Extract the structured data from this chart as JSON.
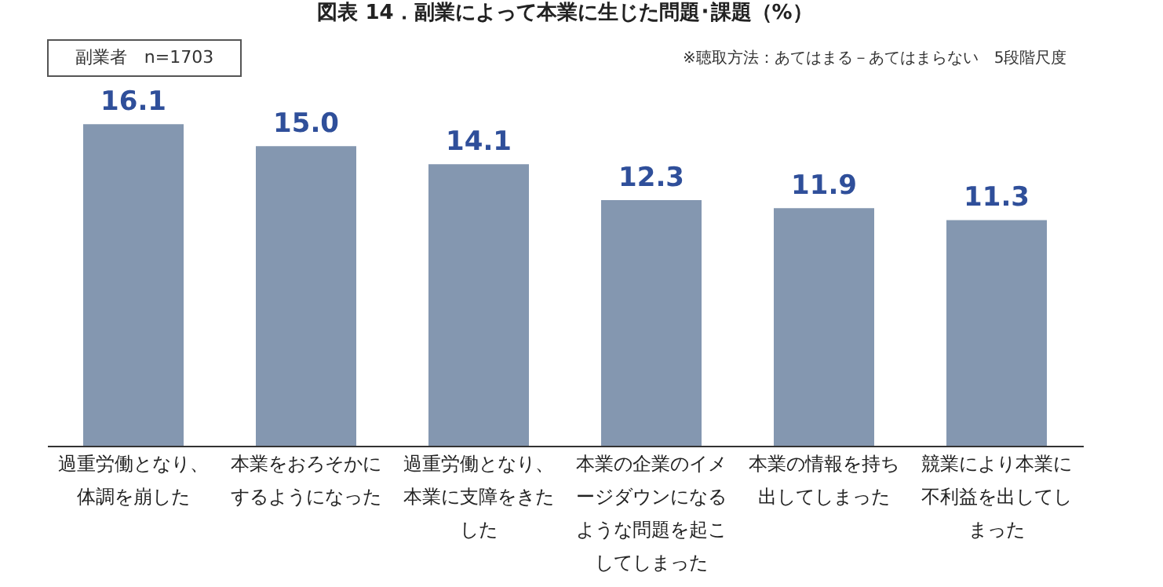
{
  "chart_data": {
    "type": "bar",
    "title": "図表 14．副業によって本業に生じた問題･課題（%）",
    "categories": [
      "過重労働となり、体調を崩した",
      "本業をおろそかにするようになった",
      "過重労働となり、本業に支障をきたした",
      "本業の企業のイメージダウンになるような問題を起こしてしまった",
      "本業の情報を持ち出してしまった",
      "競業により本業に不利益を出してしまった"
    ],
    "values": [
      16.1,
      15.0,
      14.1,
      12.3,
      11.9,
      11.3
    ],
    "value_labels": [
      "16.1",
      "15.0",
      "14.1",
      "12.3",
      "11.9",
      "11.3"
    ],
    "color": "#8497b0",
    "annotations": [
      "副業者　n=1703",
      "※聴取方法：あてはまる－あてはまらない　5段階尺度"
    ]
  }
}
